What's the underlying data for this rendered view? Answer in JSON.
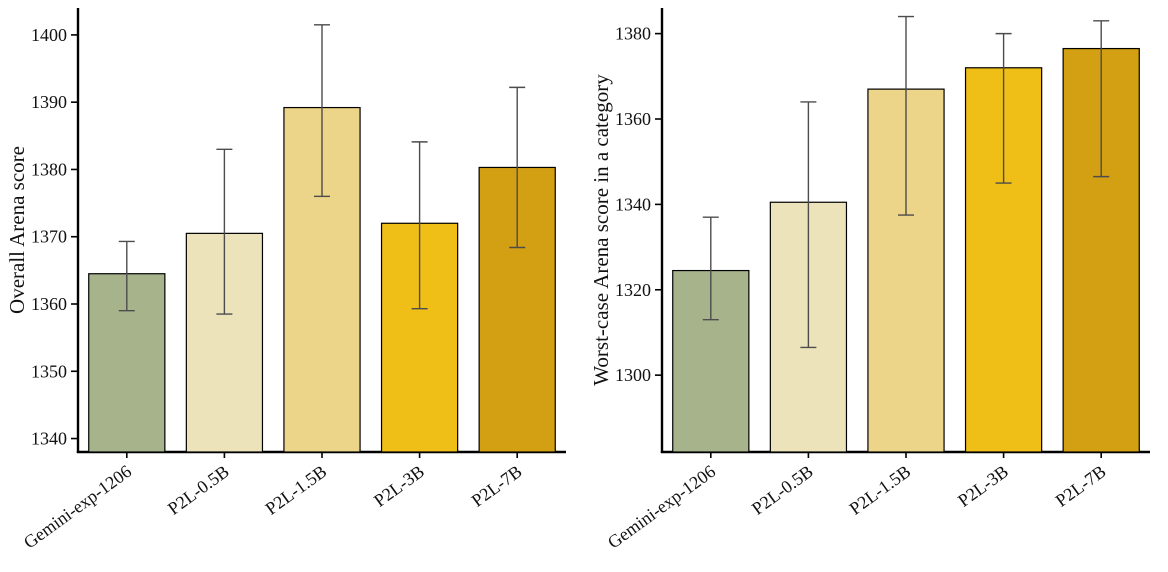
{
  "figure": {
    "background": "#ffffff",
    "axis_color": "#000000",
    "bar_edge_color": "#000000",
    "error_bar_color": "#4c4c4c"
  },
  "chart_data": [
    {
      "type": "bar",
      "panel": "left",
      "title": "",
      "xlabel": "",
      "ylabel": "Overall Arena score",
      "categories": [
        "Gemini-exp-1206",
        "P2L-0.5B",
        "P2L-1.5B",
        "P2L-3B",
        "P2L-7B"
      ],
      "values": [
        1364.5,
        1370.5,
        1389.2,
        1372.0,
        1380.3
      ],
      "error_low": [
        1359.0,
        1358.5,
        1376.0,
        1359.3,
        1368.4
      ],
      "error_high": [
        1369.3,
        1383.0,
        1401.5,
        1384.1,
        1392.2
      ],
      "bar_colors": [
        "#a7b48b",
        "#ece3ba",
        "#ecd489",
        "#efbe17",
        "#d4a013"
      ],
      "ylim": [
        1338,
        1404
      ],
      "yticks": [
        1340,
        1350,
        1360,
        1370,
        1380,
        1390,
        1400
      ],
      "grid": false,
      "legend": null
    },
    {
      "type": "bar",
      "panel": "right",
      "title": "",
      "xlabel": "",
      "ylabel": "Worst-case Arena score in a category",
      "categories": [
        "Gemini-exp-1206",
        "P2L-0.5B",
        "P2L-1.5B",
        "P2L-3B",
        "P2L-7B"
      ],
      "values": [
        1324.5,
        1340.5,
        1367.0,
        1372.0,
        1376.5
      ],
      "error_low": [
        1313.0,
        1306.5,
        1337.5,
        1345.0,
        1346.5
      ],
      "error_high": [
        1337.0,
        1364.0,
        1384.0,
        1380.0,
        1383.0
      ],
      "bar_colors": [
        "#a7b48b",
        "#ece3ba",
        "#ecd489",
        "#efbe17",
        "#d4a013"
      ],
      "ylim": [
        1282,
        1386
      ],
      "yticks": [
        1300,
        1320,
        1340,
        1360,
        1380
      ],
      "grid": false,
      "legend": null
    }
  ]
}
